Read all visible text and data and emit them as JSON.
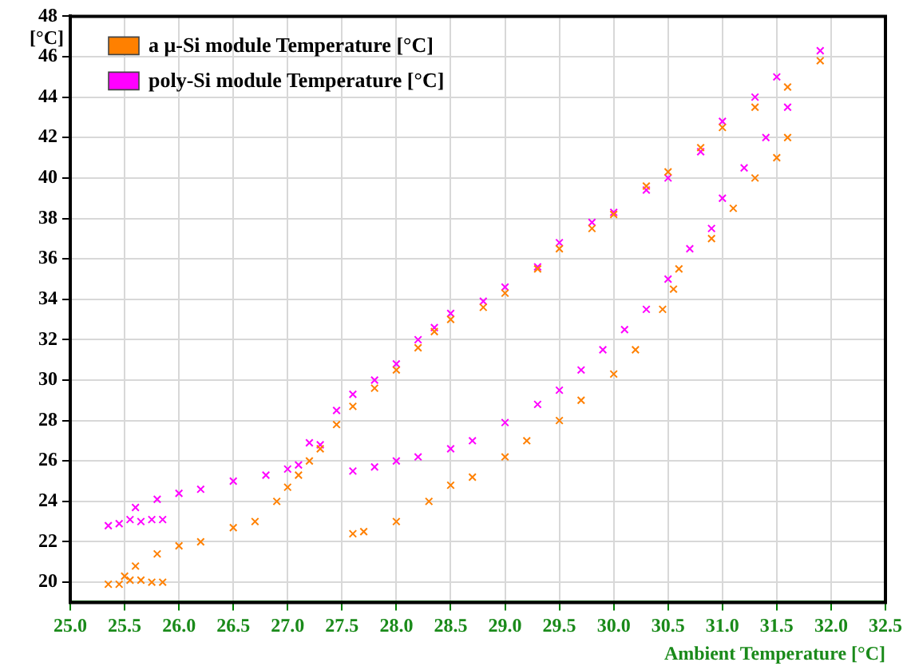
{
  "chart_data": {
    "type": "scatter",
    "xlabel": "Ambient Temperature [°C]",
    "ylabel": "[°C]",
    "xlim": [
      25.0,
      32.5
    ],
    "xticks": [
      {
        "value": 25,
        "label": "25.0"
      },
      25.5,
      {
        "value": 26,
        "label": "26.0"
      },
      26.5,
      {
        "value": 27,
        "label": "27.0"
      },
      27.5,
      {
        "value": 28,
        "label": "28.0"
      },
      28.5,
      {
        "value": 29,
        "label": "29.0"
      },
      29.5,
      {
        "value": 30,
        "label": "30.0"
      },
      30.5,
      {
        "value": 31,
        "label": "31.0"
      },
      31.5,
      {
        "value": 32,
        "label": "32.0"
      },
      32.5
    ],
    "ylim": [
      19,
      48
    ],
    "yticks": [
      20,
      22,
      24,
      26,
      28,
      30,
      32,
      34,
      36,
      38,
      40,
      42,
      44,
      46,
      48
    ],
    "grid": true,
    "legend": "top left",
    "marker": "cross",
    "series": [
      {
        "name": "a μ-Si module Temperature [°C]",
        "color": "#ff8000",
        "x": [
          25.35,
          25.45,
          25.55,
          25.65,
          25.75,
          25.85,
          25.5,
          25.6,
          25.8,
          26.0,
          26.2,
          26.5,
          26.7,
          26.9,
          27.0,
          27.1,
          27.2,
          27.3,
          27.45,
          27.6,
          27.8,
          28.0,
          28.2,
          28.35,
          28.5,
          28.8,
          29.0,
          29.3,
          29.5,
          29.8,
          30.0,
          30.3,
          30.5,
          30.8,
          31.0,
          31.3,
          31.6,
          31.9,
          31.6,
          31.5,
          31.3,
          31.1,
          30.9,
          30.6,
          30.55,
          30.45,
          30.2,
          30.0,
          29.7,
          29.5,
          29.2,
          29.0,
          28.7,
          28.5,
          28.3,
          28.0,
          27.7,
          27.6
        ],
        "values": [
          19.9,
          19.9,
          20.1,
          20.1,
          20.0,
          20.0,
          20.3,
          20.8,
          21.4,
          21.8,
          22.0,
          22.7,
          23.0,
          24.0,
          24.7,
          25.3,
          26.0,
          26.6,
          27.8,
          28.7,
          29.6,
          30.5,
          31.6,
          32.4,
          33.0,
          33.6,
          34.3,
          35.5,
          36.5,
          37.5,
          38.2,
          39.6,
          40.3,
          41.5,
          42.5,
          43.5,
          44.5,
          45.8,
          42.0,
          41.0,
          40.0,
          38.5,
          37.0,
          35.5,
          34.5,
          33.5,
          31.5,
          30.3,
          29.0,
          28.0,
          27.0,
          26.2,
          25.2,
          24.8,
          24.0,
          23.0,
          22.5,
          22.4
        ]
      },
      {
        "name": "poly-Si module Temperature [°C]",
        "color": "#ff00ff",
        "x": [
          25.35,
          25.45,
          25.55,
          25.65,
          25.75,
          25.85,
          25.6,
          25.8,
          26.0,
          26.2,
          26.5,
          26.8,
          27.0,
          27.1,
          27.2,
          27.3,
          27.45,
          27.6,
          27.8,
          28.0,
          28.2,
          28.35,
          28.5,
          28.8,
          29.0,
          29.3,
          29.5,
          29.8,
          30.0,
          30.3,
          30.5,
          30.8,
          31.0,
          31.3,
          31.5,
          31.9,
          31.6,
          31.4,
          31.2,
          31.0,
          30.9,
          30.7,
          30.5,
          30.3,
          30.1,
          29.9,
          29.7,
          29.5,
          29.3,
          29.0,
          28.7,
          28.5,
          28.2,
          28.0,
          27.8,
          27.6
        ],
        "values": [
          22.8,
          22.9,
          23.1,
          23.0,
          23.1,
          23.1,
          23.7,
          24.1,
          24.4,
          24.6,
          25.0,
          25.3,
          25.6,
          25.8,
          26.9,
          26.8,
          28.5,
          29.3,
          30.0,
          30.8,
          32.0,
          32.6,
          33.3,
          33.9,
          34.6,
          35.6,
          36.8,
          37.8,
          38.3,
          39.4,
          40.0,
          41.3,
          42.8,
          44.0,
          45.0,
          46.3,
          43.5,
          42.0,
          40.5,
          39.0,
          37.5,
          36.5,
          35.0,
          33.5,
          32.5,
          31.5,
          30.5,
          29.5,
          28.8,
          27.9,
          27.0,
          26.6,
          26.2,
          26.0,
          25.7,
          25.5
        ]
      }
    ]
  }
}
